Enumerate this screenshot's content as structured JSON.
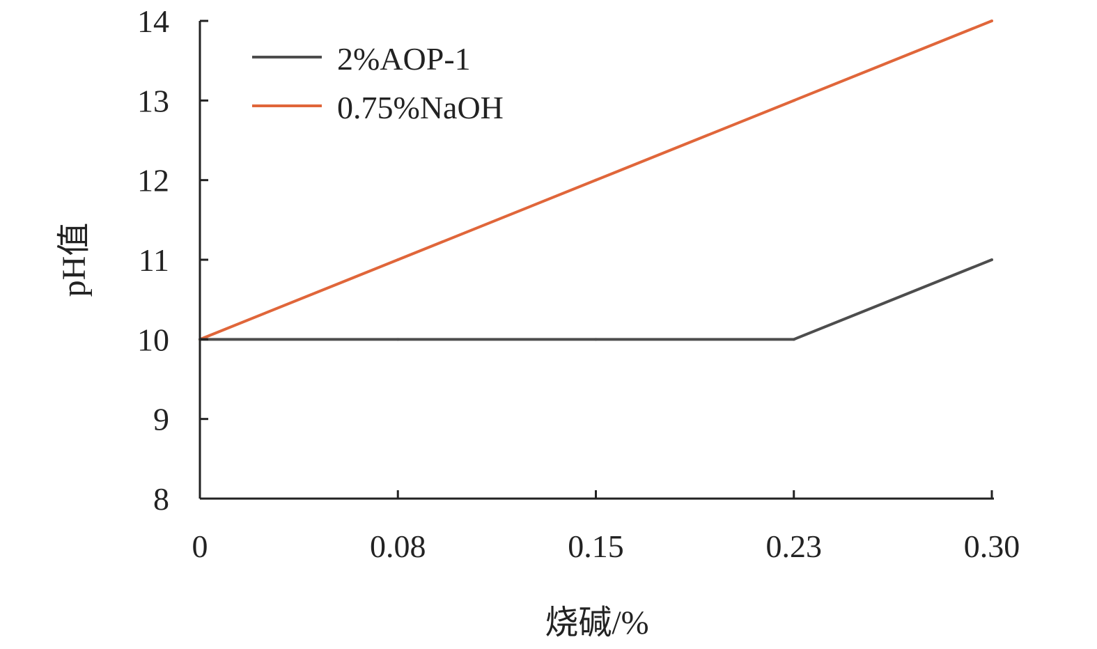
{
  "chart_data": {
    "type": "line",
    "title": "",
    "xlabel": "烧碱/%",
    "ylabel": "pH值",
    "categories": [
      "0",
      "0.08",
      "0.15",
      "0.23",
      "0.30"
    ],
    "y_ticks": [
      "8",
      "9",
      "10",
      "11",
      "12",
      "13",
      "14"
    ],
    "ylim": [
      8,
      14
    ],
    "grid": false,
    "legend_position": "top-left",
    "series": [
      {
        "name": "2%AOP-1",
        "values": [
          10,
          10,
          10,
          10,
          11
        ],
        "color": "#4d4d4d"
      },
      {
        "name": "0.75%NaOH",
        "values": [
          10,
          11,
          12,
          13,
          14
        ],
        "color": "#e0663a"
      }
    ]
  }
}
